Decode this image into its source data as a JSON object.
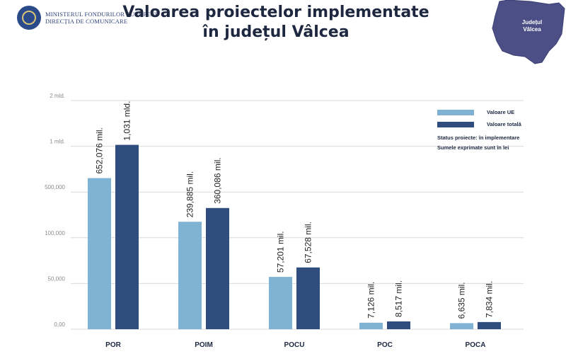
{
  "header": {
    "ministry_line1": "MINISTERUL FONDURILOR EUROPENE",
    "ministry_line2": "DIRECȚIA DE COMUNICARE",
    "title_line1": "Valoarea proiectelor implementate",
    "title_line2": "în județul Vâlcea",
    "map_label_line1": "Județul",
    "map_label_line2": "Vâlcea"
  },
  "colors": {
    "ue": "#7fb2d3",
    "total": "#2f4d7e",
    "map": "#4b4f86"
  },
  "legend": {
    "ue_label": "Valoare UE",
    "total_label": "Valoare totală",
    "status": "Status proiecte: în implementare",
    "units": "Sumele exprimate sunt în lei"
  },
  "chart_data": {
    "type": "bar",
    "categories": [
      "POR",
      "POIM",
      "POCU",
      "POC",
      "POCA"
    ],
    "y_tick_labels": [
      "0,00",
      "50,000",
      "100,000",
      "500,000",
      "1 mld.",
      "2 mld."
    ],
    "series": [
      {
        "name": "Valoare UE",
        "values": [
          652.076,
          239.885,
          57.201,
          7.126,
          6.635
        ],
        "labels": [
          "652,076 mil.",
          "239,885 mil.",
          "57,201 mil.",
          "7,126 mil.",
          "6,635 mil."
        ]
      },
      {
        "name": "Valoare totală",
        "values": [
          1031,
          360.086,
          67.528,
          8.517,
          7.834
        ],
        "labels": [
          "1,031 mld.",
          "360,086 mil.",
          "67,528 mil.",
          "8,517 mil.",
          "7,834 mil."
        ]
      }
    ],
    "grid": true,
    "legend_position": "top-right"
  }
}
